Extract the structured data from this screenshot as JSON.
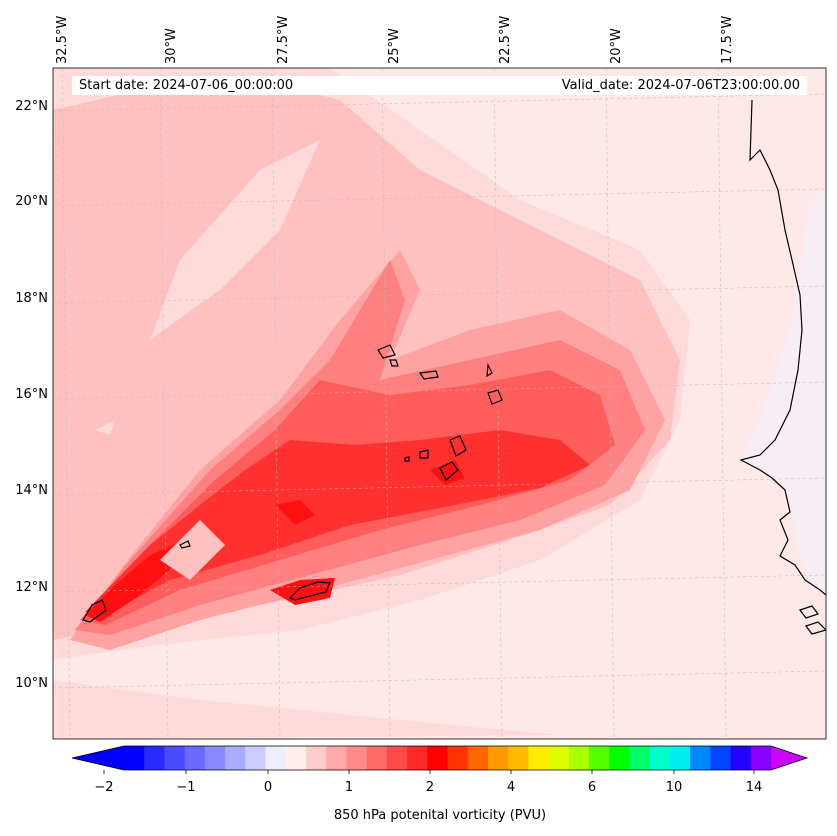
{
  "map": {
    "start_date": "Start date: 2024-07-06_00:00:00",
    "valid_date": "Valid_date: 2024-07-06T23:00:00.00",
    "lon_labels": [
      "32.5°W",
      "30°W",
      "27.5°W",
      "25°W",
      "22.5°W",
      "20°W",
      "17.5°W"
    ],
    "lat_labels": [
      "22°N",
      "20°N",
      "18°N",
      "16°N",
      "14°N",
      "12°N",
      "10°N"
    ],
    "colors": {
      "ocean_background": "#ffe8e8",
      "coastline": "#000000",
      "land_east": "#f0f0ff",
      "pv_levels": [
        "#ffdada",
        "#ffc0c0",
        "#ffa2a2",
        "#ff8080",
        "#ff5c5c",
        "#ff3030",
        "#ff1010"
      ]
    }
  },
  "colorbar": {
    "label": "850 hPa potenital vorticity (PVU)",
    "ticks": [
      "−2",
      "−1",
      "0",
      "1",
      "2",
      "4",
      "6",
      "10",
      "14"
    ],
    "colors": [
      "#0000ff",
      "#2a2aff",
      "#4a4aff",
      "#6a6aff",
      "#8a8aff",
      "#aaaaff",
      "#ccccff",
      "#eeeeff",
      "#ffeeee",
      "#ffcccc",
      "#ffaaaa",
      "#ff8a8a",
      "#ff6a6a",
      "#ff4a4a",
      "#ff2a2a",
      "#ff0000",
      "#ff3300",
      "#ff6600",
      "#ff9900",
      "#ffbb00",
      "#ffee00",
      "#ddff00",
      "#aaff00",
      "#55ff00",
      "#00ff00",
      "#00ff66",
      "#00ffcc",
      "#00eeee",
      "#0088ff",
      "#0044ff",
      "#2200ff",
      "#8800ff"
    ],
    "under_color": "#0000ff",
    "over_color": "#cc00ff"
  }
}
